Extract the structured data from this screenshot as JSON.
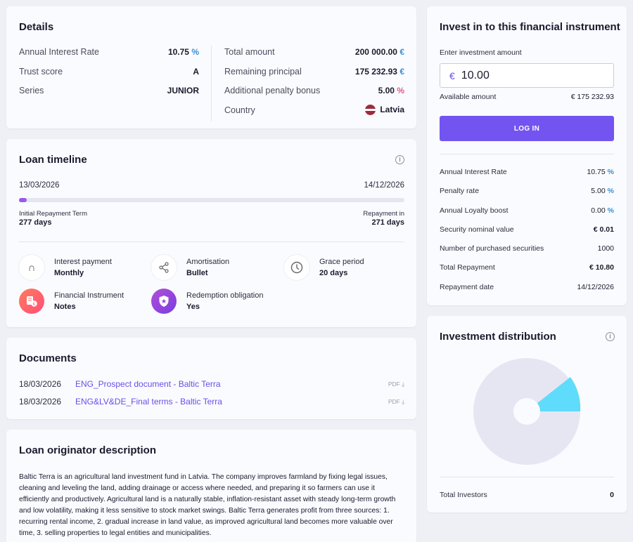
{
  "details": {
    "title": "Details",
    "left": [
      {
        "label": "Annual Interest Rate",
        "value": "10.75",
        "unit": "%"
      },
      {
        "label": "Trust score",
        "value": "A"
      },
      {
        "label": "Series",
        "value": "JUNIOR"
      }
    ],
    "right": [
      {
        "label": "Total amount",
        "value": "200 000.00",
        "unit": "€"
      },
      {
        "label": "Remaining principal",
        "value": "175 232.93",
        "unit": "€"
      },
      {
        "label": "Additional penalty bonus",
        "value": "5.00",
        "unit": "%"
      },
      {
        "label": "Country",
        "value": "Latvia"
      }
    ]
  },
  "timeline": {
    "title": "Loan timeline",
    "start_date": "13/03/2026",
    "end_date": "14/12/2026",
    "progress_fraction": 0.02,
    "left_caption": "Initial Repayment Term",
    "left_days": "277 days",
    "right_caption": "Repayment in",
    "right_days": "271 days",
    "features": [
      {
        "label": "Interest payment",
        "value": "Monthly",
        "icon": "magnet-icon"
      },
      {
        "label": "Amortisation",
        "value": "Bullet",
        "icon": "share-nodes-icon"
      },
      {
        "label": "Grace period",
        "value": "20 days",
        "icon": "clock-icon"
      },
      {
        "label": "Financial Instrument",
        "value": "Notes",
        "icon": "notes-euro-icon"
      },
      {
        "label": "Redemption obligation",
        "value": "Yes",
        "icon": "shield-icon"
      }
    ]
  },
  "documents": {
    "title": "Documents",
    "items": [
      {
        "date": "18/03/2026",
        "name": "ENG_Prospect document - Baltic Terra",
        "type": "PDF"
      },
      {
        "date": "18/03/2026",
        "name": "ENG&LV&DE_Final terms - Baltic Terra",
        "type": "PDF"
      }
    ]
  },
  "description": {
    "title": "Loan originator description",
    "text": "Baltic Terra is an agricultural land investment fund in Latvia. The company improves farmland by fixing legal issues, cleaning and leveling the land, adding drainage or access where needed, and preparing it so farmers can use it efficiently and productively. Agricultural land is a naturally stable, inflation-resistant asset with steady long-term growth and low volatility, making it less sensitive to stock market swings. Baltic Terra generates profit from three sources: 1. recurring rental income, 2. gradual increase in land value, as improved agricultural land becomes more valuable over time, 3. selling properties to legal entities and municipalities."
  },
  "invest": {
    "title": "Invest in to this financial instrument",
    "input_label": "Enter investment amount",
    "currency_symbol": "€",
    "amount": "10.00",
    "available_label": "Available amount",
    "available_value": "€ 175 232.93",
    "login_label": "LOG IN",
    "rows": [
      {
        "label": "Annual Interest Rate",
        "value": "10.75",
        "unit": "%"
      },
      {
        "label": "Penalty rate",
        "value": "5.00",
        "unit": "%"
      },
      {
        "label": "Annual Loyalty boost",
        "value": "0.00",
        "unit": "%"
      },
      {
        "label": "Security nominal value",
        "value": "€ 0.01"
      },
      {
        "label": "Number of purchased securities",
        "value": "1000"
      },
      {
        "label": "Total Repayment",
        "value": "€ 10.80"
      },
      {
        "label": "Repayment date",
        "value": "14/12/2026"
      }
    ]
  },
  "distribution": {
    "title": "Investment distribution",
    "investors_label": "Total Investors",
    "investors_value": "0",
    "colors": {
      "base": "#e6e6f3",
      "highlight": "#5fdcfb"
    }
  }
}
